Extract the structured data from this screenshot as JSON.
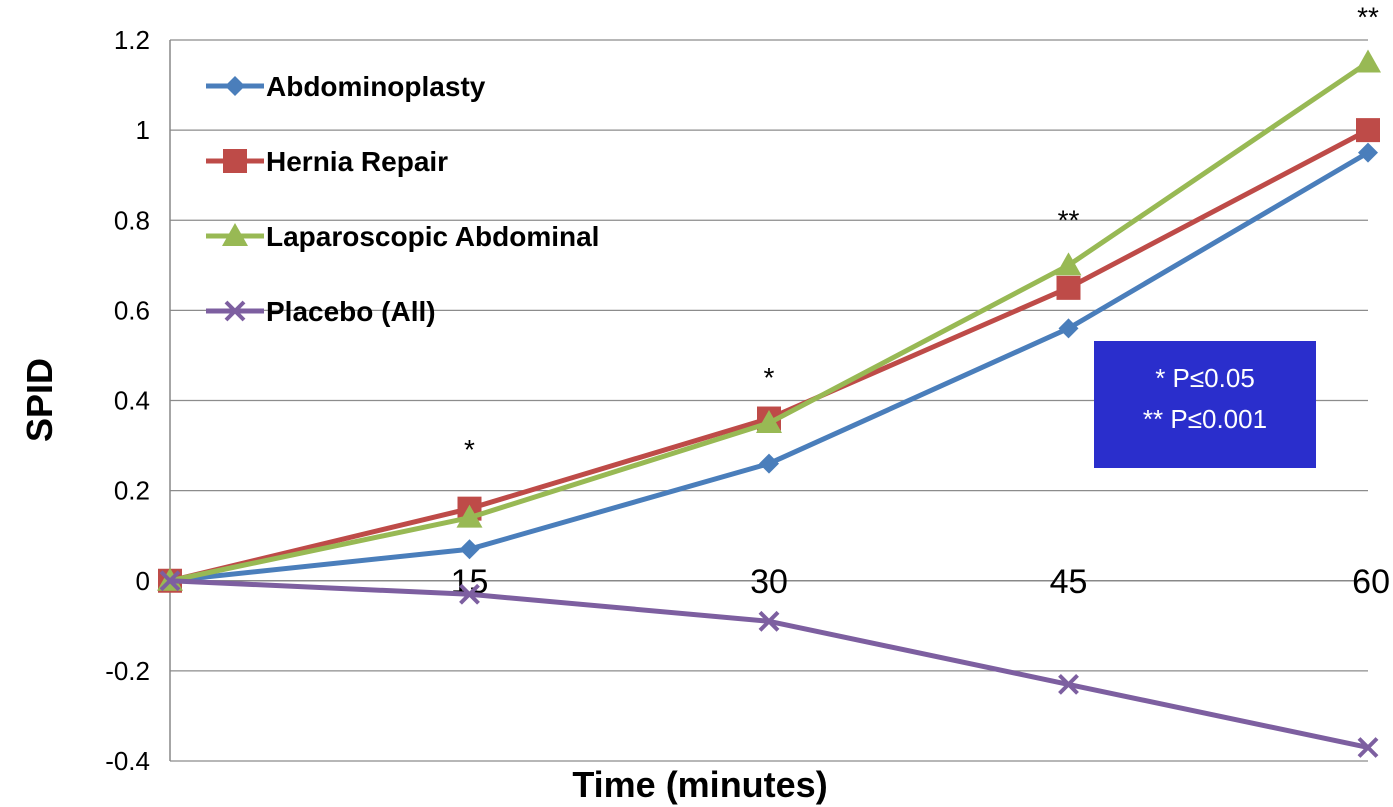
{
  "chart_data": {
    "type": "line",
    "title": "",
    "xlabel": "Time (minutes)",
    "ylabel": "SPID",
    "x": [
      0,
      15,
      30,
      45,
      60
    ],
    "x_tick_labels": [
      "15",
      "30",
      "45",
      "60"
    ],
    "ylim": [
      -0.4,
      1.2
    ],
    "y_ticks": [
      -0.4,
      -0.2,
      0,
      0.2,
      0.4,
      0.6,
      0.8,
      1,
      1.2
    ],
    "y_tick_labels": [
      "-0.4",
      "-0.2",
      "0",
      "0.2",
      "0.4",
      "0.6",
      "0.8",
      "1",
      "1.2"
    ],
    "grid": true,
    "legend_position": "top-left",
    "series": [
      {
        "name": "Abdominoplasty",
        "color": "#4A7EBB",
        "marker": "diamond",
        "values": [
          0,
          0.07,
          0.26,
          0.56,
          0.95
        ]
      },
      {
        "name": "Hernia Repair",
        "color": "#BE4B48",
        "marker": "square",
        "values": [
          0,
          0.16,
          0.36,
          0.65,
          1.0
        ]
      },
      {
        "name": "Laparoscopic Abdominal",
        "color": "#98B954",
        "marker": "triangle",
        "values": [
          0,
          0.14,
          0.35,
          0.7,
          1.15
        ]
      },
      {
        "name": "Placebo (All)",
        "color": "#7D5FA0",
        "marker": "x",
        "values": [
          0,
          -0.03,
          -0.09,
          -0.23,
          -0.37
        ]
      }
    ],
    "annotations": [
      {
        "x": 15,
        "y": 0.27,
        "text": "*"
      },
      {
        "x": 30,
        "y": 0.43,
        "text": "*"
      },
      {
        "x": 45,
        "y": 0.78,
        "text": "**"
      },
      {
        "x": 60,
        "y": 1.23,
        "text": "**"
      }
    ],
    "significance_box": {
      "lines": [
        "* P≤0.05",
        "** P≤0.001"
      ],
      "background": "#2A2ECC"
    }
  }
}
